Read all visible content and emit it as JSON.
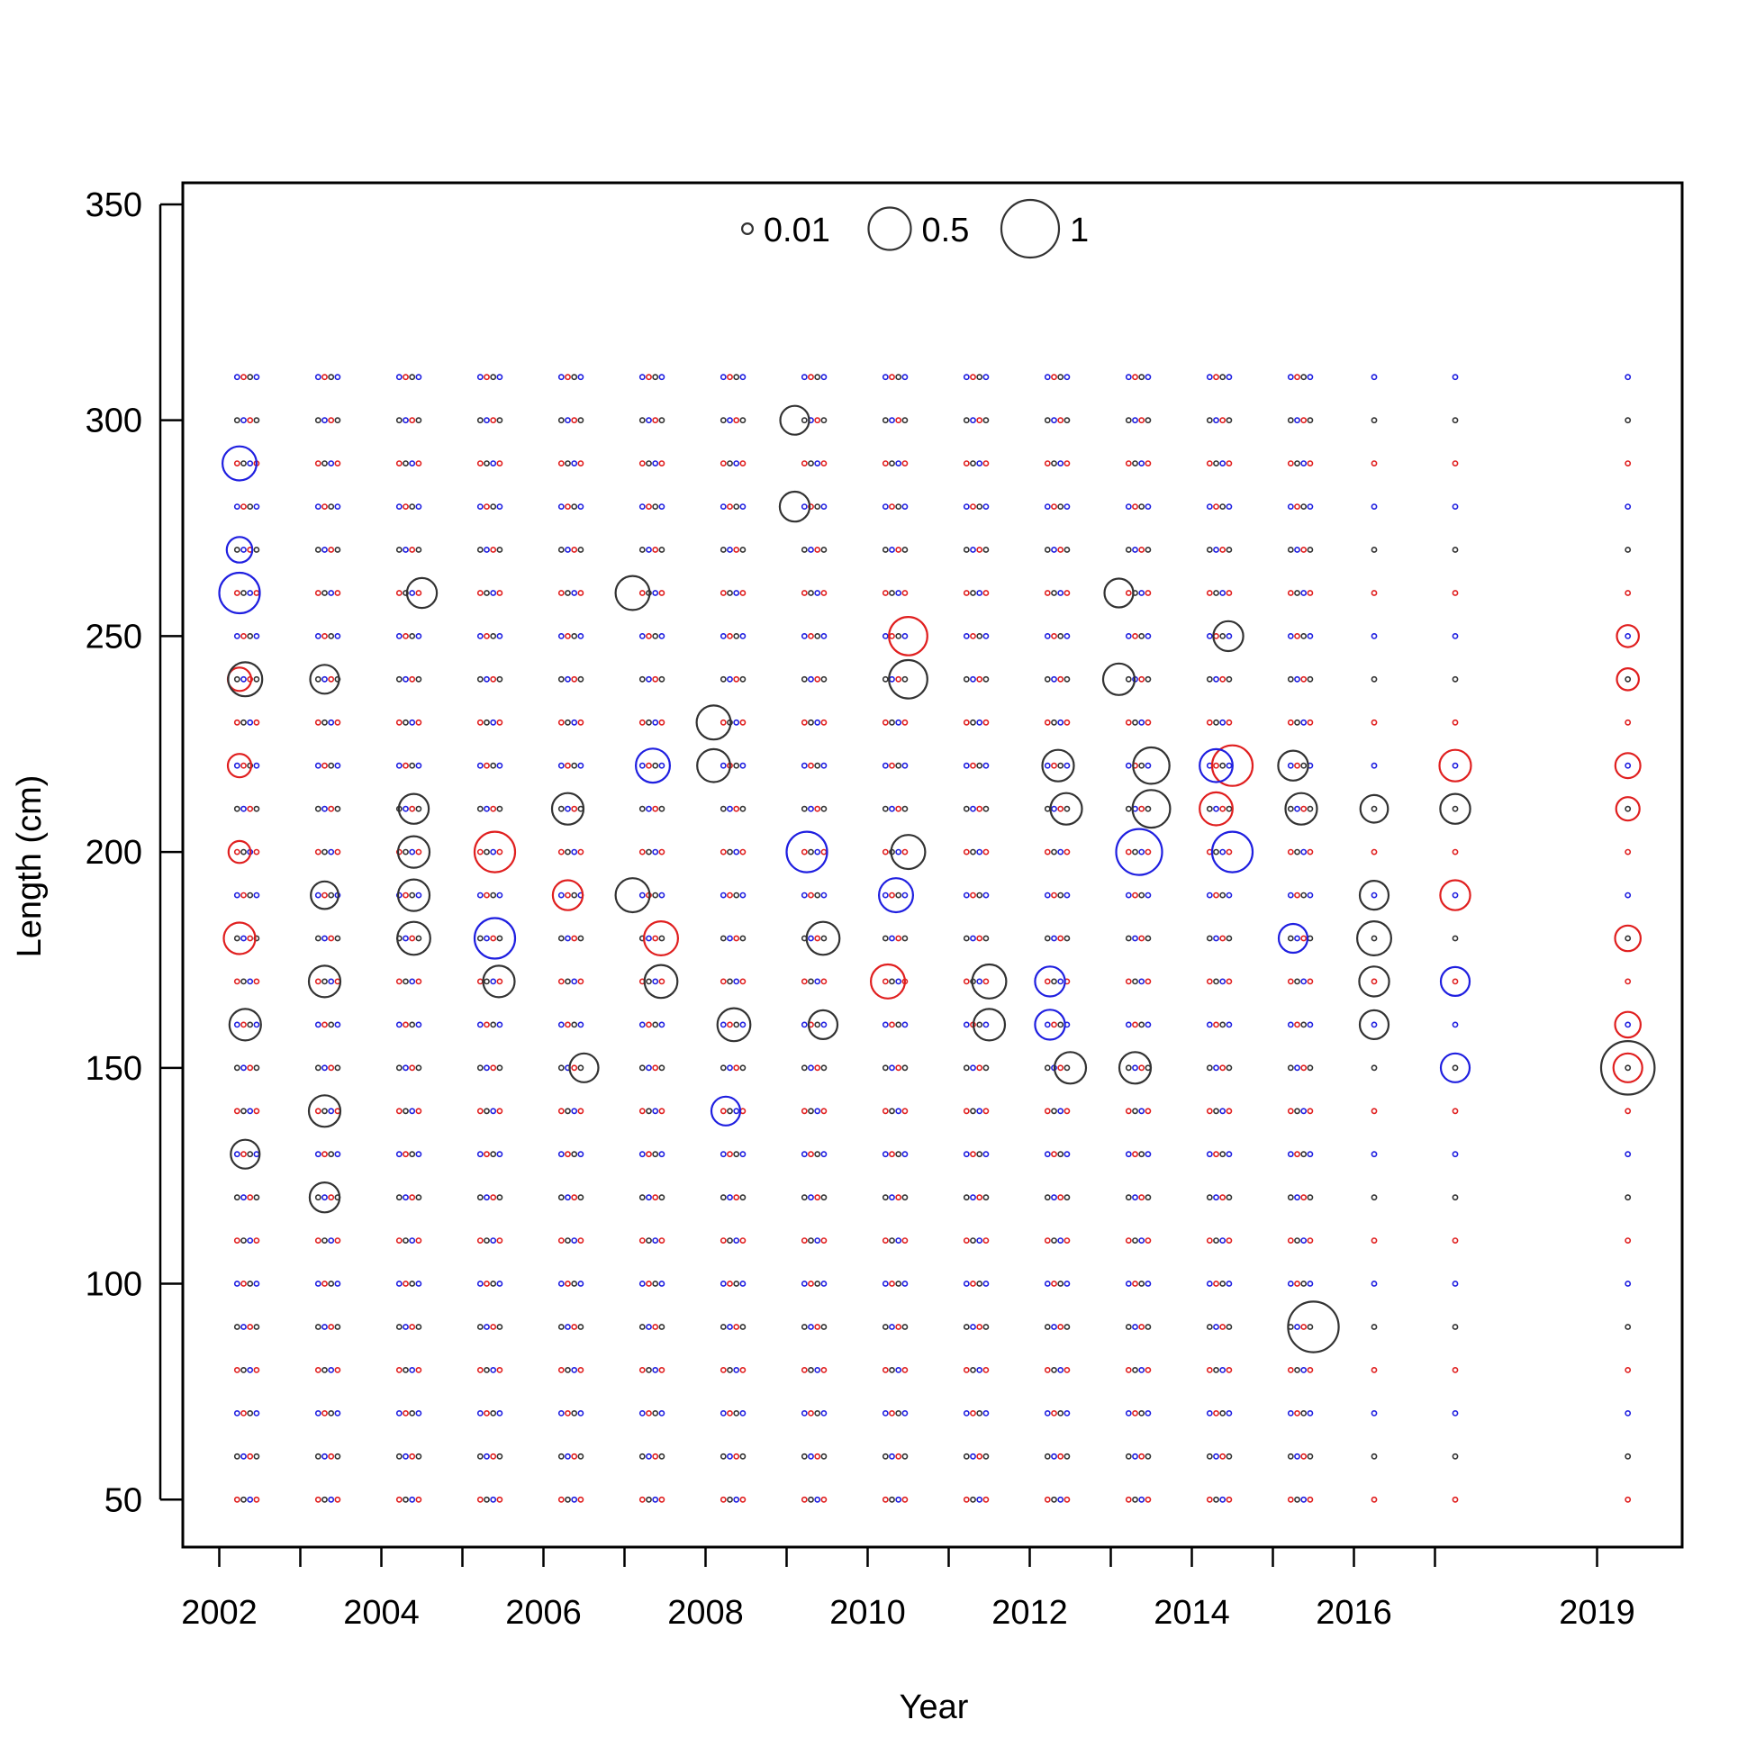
{
  "chart_data": {
    "type": "scatter",
    "subtype": "bubble",
    "xlabel": "Year",
    "ylabel": "Length (cm)",
    "xlim": [
      2001.55,
      2020.05
    ],
    "ylim": [
      39,
      355
    ],
    "x_ticks": [
      2002,
      2003,
      2004,
      2005,
      2006,
      2007,
      2008,
      2009,
      2010,
      2011,
      2012,
      2013,
      2014,
      2015,
      2016,
      2017,
      2019
    ],
    "x_tick_labels": [
      "2002",
      "2004",
      "2006",
      "2008",
      "2010",
      "2012",
      "2014",
      "2016",
      "2019"
    ],
    "x_tick_label_values": [
      2002,
      2004,
      2006,
      2008,
      2010,
      2012,
      2014,
      2016,
      2019
    ],
    "y_ticks": [
      50,
      100,
      150,
      200,
      250,
      300,
      350
    ],
    "y_tick_labels": [
      "50",
      "100",
      "150",
      "200",
      "250",
      "300",
      "350"
    ],
    "grid": false,
    "legend": {
      "placement": "top-center",
      "entries": [
        {
          "label": "0.01",
          "value": 0.01
        },
        {
          "label": "0.5",
          "value": 0.5
        },
        {
          "label": "1",
          "value": 1
        }
      ]
    },
    "lengths": [
      50,
      60,
      70,
      80,
      90,
      100,
      110,
      120,
      130,
      140,
      150,
      160,
      170,
      180,
      190,
      200,
      210,
      220,
      230,
      240,
      250,
      260,
      270,
      280,
      290,
      300,
      310
    ],
    "series_colors": {
      "gray": "#333333",
      "blue": "#1f1fe0",
      "red": "#e01f1f"
    },
    "points": [
      {
        "x": 2002.25,
        "y": 290,
        "size": 0.3,
        "color": "blue"
      },
      {
        "x": 2002.25,
        "y": 270,
        "size": 0.15,
        "color": "blue"
      },
      {
        "x": 2002.25,
        "y": 260,
        "size": 0.45,
        "color": "blue"
      },
      {
        "x": 2002.25,
        "y": 240,
        "size": 0.12,
        "color": "red"
      },
      {
        "x": 2002.25,
        "y": 220,
        "size": 0.12,
        "color": "red"
      },
      {
        "x": 2002.25,
        "y": 200,
        "size": 0.1,
        "color": "red"
      },
      {
        "x": 2002.25,
        "y": 180,
        "size": 0.25,
        "color": "red"
      },
      {
        "x": 2002.32,
        "y": 240,
        "size": 0.3,
        "color": "gray"
      },
      {
        "x": 2002.32,
        "y": 160,
        "size": 0.25,
        "color": "gray"
      },
      {
        "x": 2002.32,
        "y": 130,
        "size": 0.2,
        "color": "gray"
      },
      {
        "x": 2003.3,
        "y": 240,
        "size": 0.2,
        "color": "gray"
      },
      {
        "x": 2003.3,
        "y": 190,
        "size": 0.18,
        "color": "gray"
      },
      {
        "x": 2003.3,
        "y": 170,
        "size": 0.25,
        "color": "gray"
      },
      {
        "x": 2003.3,
        "y": 140,
        "size": 0.25,
        "color": "gray"
      },
      {
        "x": 2003.3,
        "y": 120,
        "size": 0.22,
        "color": "gray"
      },
      {
        "x": 2004.4,
        "y": 210,
        "size": 0.22,
        "color": "gray"
      },
      {
        "x": 2004.4,
        "y": 200,
        "size": 0.25,
        "color": "gray"
      },
      {
        "x": 2004.4,
        "y": 190,
        "size": 0.25,
        "color": "gray"
      },
      {
        "x": 2004.4,
        "y": 180,
        "size": 0.28,
        "color": "gray"
      },
      {
        "x": 2004.5,
        "y": 260,
        "size": 0.22,
        "color": "gray"
      },
      {
        "x": 2005.4,
        "y": 200,
        "size": 0.45,
        "color": "red"
      },
      {
        "x": 2005.4,
        "y": 180,
        "size": 0.45,
        "color": "blue"
      },
      {
        "x": 2005.45,
        "y": 170,
        "size": 0.25,
        "color": "gray"
      },
      {
        "x": 2006.3,
        "y": 210,
        "size": 0.25,
        "color": "gray"
      },
      {
        "x": 2006.3,
        "y": 190,
        "size": 0.22,
        "color": "red"
      },
      {
        "x": 2006.5,
        "y": 150,
        "size": 0.2,
        "color": "gray"
      },
      {
        "x": 2007.1,
        "y": 260,
        "size": 0.3,
        "color": "gray"
      },
      {
        "x": 2007.1,
        "y": 190,
        "size": 0.3,
        "color": "gray"
      },
      {
        "x": 2007.35,
        "y": 220,
        "size": 0.3,
        "color": "blue"
      },
      {
        "x": 2007.45,
        "y": 180,
        "size": 0.3,
        "color": "red"
      },
      {
        "x": 2007.45,
        "y": 170,
        "size": 0.28,
        "color": "gray"
      },
      {
        "x": 2008.1,
        "y": 230,
        "size": 0.3,
        "color": "gray"
      },
      {
        "x": 2008.1,
        "y": 220,
        "size": 0.28,
        "color": "gray"
      },
      {
        "x": 2008.35,
        "y": 160,
        "size": 0.28,
        "color": "gray"
      },
      {
        "x": 2008.25,
        "y": 140,
        "size": 0.2,
        "color": "blue"
      },
      {
        "x": 2009.1,
        "y": 300,
        "size": 0.2,
        "color": "gray"
      },
      {
        "x": 2009.1,
        "y": 280,
        "size": 0.22,
        "color": "gray"
      },
      {
        "x": 2009.25,
        "y": 200,
        "size": 0.45,
        "color": "blue"
      },
      {
        "x": 2009.45,
        "y": 180,
        "size": 0.28,
        "color": "gray"
      },
      {
        "x": 2009.45,
        "y": 160,
        "size": 0.2,
        "color": "gray"
      },
      {
        "x": 2010.5,
        "y": 250,
        "size": 0.4,
        "color": "red"
      },
      {
        "x": 2010.5,
        "y": 240,
        "size": 0.4,
        "color": "gray"
      },
      {
        "x": 2010.5,
        "y": 200,
        "size": 0.3,
        "color": "gray"
      },
      {
        "x": 2010.35,
        "y": 190,
        "size": 0.3,
        "color": "blue"
      },
      {
        "x": 2010.25,
        "y": 170,
        "size": 0.3,
        "color": "red"
      },
      {
        "x": 2011.5,
        "y": 170,
        "size": 0.3,
        "color": "gray"
      },
      {
        "x": 2011.5,
        "y": 160,
        "size": 0.25,
        "color": "gray"
      },
      {
        "x": 2012.35,
        "y": 220,
        "size": 0.25,
        "color": "gray"
      },
      {
        "x": 2012.45,
        "y": 210,
        "size": 0.25,
        "color": "gray"
      },
      {
        "x": 2012.25,
        "y": 170,
        "size": 0.22,
        "color": "blue"
      },
      {
        "x": 2012.25,
        "y": 160,
        "size": 0.22,
        "color": "blue"
      },
      {
        "x": 2012.5,
        "y": 150,
        "size": 0.25,
        "color": "gray"
      },
      {
        "x": 2013.1,
        "y": 260,
        "size": 0.2,
        "color": "gray"
      },
      {
        "x": 2013.1,
        "y": 240,
        "size": 0.25,
        "color": "gray"
      },
      {
        "x": 2013.5,
        "y": 220,
        "size": 0.35,
        "color": "gray"
      },
      {
        "x": 2013.5,
        "y": 210,
        "size": 0.38,
        "color": "gray"
      },
      {
        "x": 2013.35,
        "y": 200,
        "size": 0.6,
        "color": "blue"
      },
      {
        "x": 2013.3,
        "y": 150,
        "size": 0.25,
        "color": "gray"
      },
      {
        "x": 2014.5,
        "y": 220,
        "size": 0.45,
        "color": "red"
      },
      {
        "x": 2014.5,
        "y": 200,
        "size": 0.45,
        "color": "blue"
      },
      {
        "x": 2014.3,
        "y": 210,
        "size": 0.28,
        "color": "red"
      },
      {
        "x": 2014.3,
        "y": 220,
        "size": 0.28,
        "color": "blue"
      },
      {
        "x": 2014.45,
        "y": 250,
        "size": 0.22,
        "color": "gray"
      },
      {
        "x": 2015.5,
        "y": 90,
        "size": 0.75,
        "color": "gray"
      },
      {
        "x": 2015.25,
        "y": 220,
        "size": 0.22,
        "color": "gray"
      },
      {
        "x": 2015.35,
        "y": 210,
        "size": 0.25,
        "color": "gray"
      },
      {
        "x": 2015.25,
        "y": 180,
        "size": 0.2,
        "color": "blue"
      },
      {
        "x": 2016.25,
        "y": 180,
        "size": 0.3,
        "color": "gray"
      },
      {
        "x": 2016.25,
        "y": 170,
        "size": 0.22,
        "color": "gray"
      },
      {
        "x": 2016.25,
        "y": 190,
        "size": 0.2,
        "color": "gray"
      },
      {
        "x": 2016.25,
        "y": 160,
        "size": 0.2,
        "color": "gray"
      },
      {
        "x": 2016.25,
        "y": 210,
        "size": 0.18,
        "color": "gray"
      },
      {
        "x": 2017.25,
        "y": 220,
        "size": 0.25,
        "color": "red"
      },
      {
        "x": 2017.25,
        "y": 210,
        "size": 0.22,
        "color": "gray"
      },
      {
        "x": 2017.25,
        "y": 190,
        "size": 0.22,
        "color": "red"
      },
      {
        "x": 2017.25,
        "y": 170,
        "size": 0.2,
        "color": "blue"
      },
      {
        "x": 2017.25,
        "y": 150,
        "size": 0.2,
        "color": "blue"
      },
      {
        "x": 2019.38,
        "y": 150,
        "size": 0.85,
        "color": "gray"
      },
      {
        "x": 2019.38,
        "y": 150,
        "size": 0.2,
        "color": "red"
      },
      {
        "x": 2019.38,
        "y": 160,
        "size": 0.15,
        "color": "red"
      },
      {
        "x": 2019.38,
        "y": 180,
        "size": 0.15,
        "color": "red"
      },
      {
        "x": 2019.38,
        "y": 220,
        "size": 0.14,
        "color": "red"
      },
      {
        "x": 2019.38,
        "y": 210,
        "size": 0.12,
        "color": "red"
      },
      {
        "x": 2019.38,
        "y": 240,
        "size": 0.1,
        "color": "red"
      },
      {
        "x": 2019.38,
        "y": 250,
        "size": 0.1,
        "color": "red"
      }
    ]
  }
}
